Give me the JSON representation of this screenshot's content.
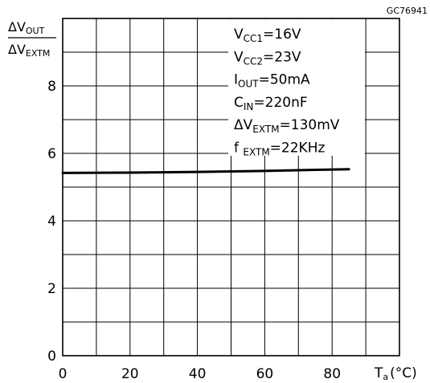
{
  "figure_code": "GC76941",
  "chart_data": {
    "type": "line",
    "ylabel": {
      "numerator": {
        "symbol": "ΔV",
        "sub": "OUT"
      },
      "denominator": {
        "symbol": "ΔV",
        "sub": "EXTM"
      }
    },
    "xlabel": {
      "symbol": "T",
      "sub": "a",
      "unit": "(°C)"
    },
    "xlim": [
      0,
      100
    ],
    "ylim": [
      0,
      10
    ],
    "x_ticks": [
      0,
      20,
      40,
      60,
      80
    ],
    "y_ticks": [
      0,
      2,
      4,
      6,
      8
    ],
    "x_grid_step": 10,
    "y_grid_step": 1,
    "grid": true,
    "conditions": [
      {
        "main": "V",
        "sub": "CC1",
        "value": "=16V"
      },
      {
        "main": "V",
        "sub": "CC2",
        "value": "=23V"
      },
      {
        "main": "I",
        "sub": "OUT",
        "value": "=50mA"
      },
      {
        "main": "C",
        "sub": "IN",
        "value": "=220nF"
      },
      {
        "main": "ΔV",
        "sub": "EXTM",
        "value": "=130mV"
      },
      {
        "main": "f ",
        "sub": "EXTM",
        "value": "=22KHz"
      }
    ],
    "series": [
      {
        "x": [
          0,
          20,
          40,
          60,
          85
        ],
        "y": [
          5.42,
          5.43,
          5.45,
          5.48,
          5.53
        ]
      }
    ]
  }
}
